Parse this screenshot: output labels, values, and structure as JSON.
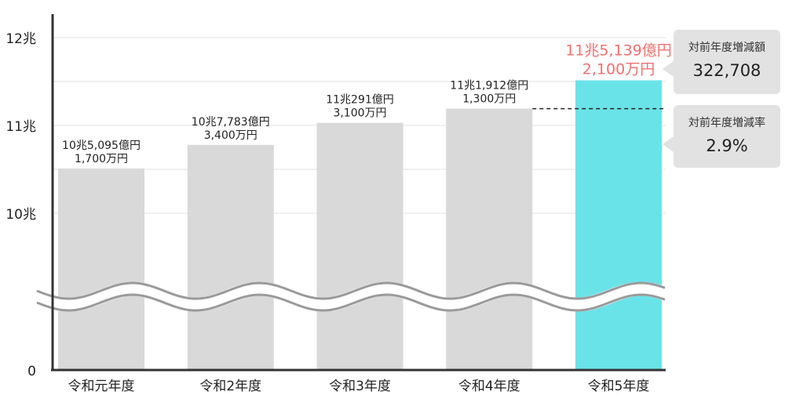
{
  "chart_data": {
    "type": "bar",
    "categories": [
      "令和元年度",
      "令和2年度",
      "令和3年度",
      "令和4年度",
      "令和5年度"
    ],
    "values_oku_yen": [
      105095.17,
      107783.34,
      110291.31,
      111912.13,
      115139.21
    ],
    "data_labels": [
      [
        "10兆5,095億円",
        "1,700万円"
      ],
      [
        "10兆7,783億円",
        "3,400万円"
      ],
      [
        "11兆291億円",
        "3,100万円"
      ],
      [
        "11兆1,912億円",
        "1,300万円"
      ],
      [
        "11兆5,139億円",
        "2,100万円"
      ]
    ],
    "y_ticks": [
      {
        "label": "12兆",
        "value": 120000
      },
      {
        "label": "11兆",
        "value": 110000
      },
      {
        "label": "10兆",
        "value": 100000
      },
      {
        "label": "0",
        "value": 0
      }
    ],
    "y_axis_break": true,
    "grid": true,
    "highlight_index": 4,
    "colors": {
      "bar": "#d9d9d9",
      "highlight": "#6ae3e8",
      "highlight_label": "#f07070",
      "axis": "#333333",
      "grid": "#e6e6e6",
      "callout": "#e2e2e2"
    }
  },
  "callouts": {
    "change_amount": {
      "title": "対前年度増減額",
      "value": "322,708"
    },
    "change_rate": {
      "title": "対前年度増減率",
      "value": "2.9%"
    }
  }
}
